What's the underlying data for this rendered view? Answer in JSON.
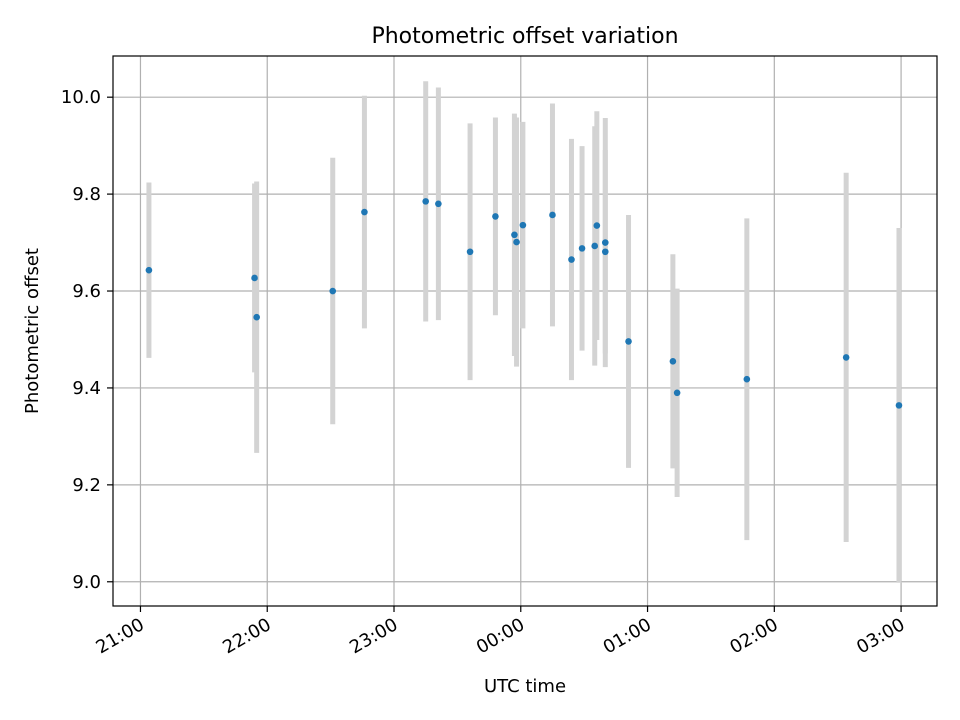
{
  "chart_data": {
    "type": "scatter",
    "title": "Photometric offset variation",
    "xlabel": "UTC time",
    "ylabel": "Photometric offset",
    "x_is_time": true,
    "xlim": [
      "20:47",
      "03:17"
    ],
    "ylim": [
      8.95,
      10.085
    ],
    "xticks": [
      "21:00",
      "22:00",
      "23:00",
      "00:00",
      "01:00",
      "02:00",
      "03:00"
    ],
    "yticks": [
      "9.0",
      "9.2",
      "9.4",
      "9.6",
      "9.8",
      "10.0"
    ],
    "grid": true,
    "colors": {
      "point": "#1f77b4",
      "errorbar": "#d3d3d3",
      "grid": "#b0b0b0"
    },
    "points": [
      {
        "x": "21:04",
        "y": 9.643,
        "yerr": 0.181
      },
      {
        "x": "21:54",
        "y": 9.627,
        "yerr": 0.195
      },
      {
        "x": "21:55",
        "y": 9.546,
        "yerr": 0.28
      },
      {
        "x": "22:31",
        "y": 9.6,
        "yerr": 0.275
      },
      {
        "x": "22:46",
        "y": 9.763,
        "yerr": 0.24
      },
      {
        "x": "23:15",
        "y": 9.785,
        "yerr": 0.248
      },
      {
        "x": "23:21",
        "y": 9.78,
        "yerr": 0.24
      },
      {
        "x": "23:36",
        "y": 9.681,
        "yerr": 0.265
      },
      {
        "x": "23:48",
        "y": 9.754,
        "yerr": 0.204
      },
      {
        "x": "23:57",
        "y": 9.716,
        "yerr": 0.25
      },
      {
        "x": "23:58",
        "y": 9.701,
        "yerr": 0.257
      },
      {
        "x": "00:01",
        "y": 9.736,
        "yerr": 0.213
      },
      {
        "x": "00:15",
        "y": 9.757,
        "yerr": 0.23
      },
      {
        "x": "00:24",
        "y": 9.665,
        "yerr": 0.249
      },
      {
        "x": "00:29",
        "y": 9.688,
        "yerr": 0.211
      },
      {
        "x": "00:35",
        "y": 9.693,
        "yerr": 0.247
      },
      {
        "x": "00:36",
        "y": 9.735,
        "yerr": 0.236
      },
      {
        "x": "00:40",
        "y": 9.7,
        "yerr": 0.257
      },
      {
        "x": "00:40",
        "y": 9.681,
        "yerr": 0.21
      },
      {
        "x": "00:51",
        "y": 9.496,
        "yerr": 0.261
      },
      {
        "x": "01:12",
        "y": 9.455,
        "yerr": 0.221
      },
      {
        "x": "01:14",
        "y": 9.39,
        "yerr": 0.215
      },
      {
        "x": "01:47",
        "y": 9.418,
        "yerr": 0.332
      },
      {
        "x": "02:34",
        "y": 9.463,
        "yerr": 0.381
      },
      {
        "x": "02:59",
        "y": 9.364,
        "yerr": 0.366
      }
    ]
  }
}
